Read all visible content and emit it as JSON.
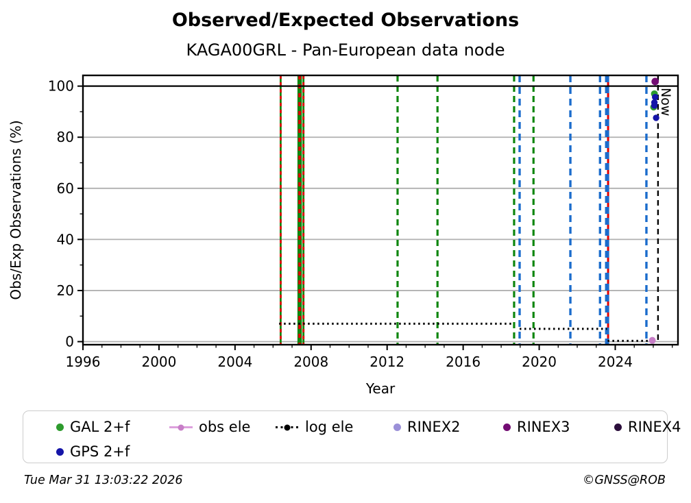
{
  "header": {
    "title": "Observed/Expected Observations",
    "subtitle": "KAGA00GRL - Pan-European data node"
  },
  "chart_data": {
    "type": "scatter",
    "title": "Observed/Expected Observations",
    "subtitle": "KAGA00GRL - Pan-European data node",
    "xlabel": "Year",
    "ylabel": "Obs/Exp Observations (%)",
    "xlim": [
      1996,
      2027.3
    ],
    "ylim": [
      -1.2,
      104.2
    ],
    "xticks": [
      1996,
      2000,
      2004,
      2008,
      2012,
      2016,
      2020,
      2024
    ],
    "xminor_step": 1,
    "yticks": [
      0,
      20,
      40,
      60,
      80,
      100
    ],
    "yminors": [
      10,
      30,
      50,
      70,
      90
    ],
    "grid": "horizontal-only",
    "hline": 100,
    "now": {
      "x": 2026.25,
      "label": "Now"
    },
    "event_lines": [
      {
        "x": 2006.4,
        "style": "green+red"
      },
      {
        "x": 2007.4,
        "style": "green+red-thick"
      },
      {
        "x": 2007.6,
        "style": "green+red"
      },
      {
        "x": 2012.55,
        "style": "green-dash"
      },
      {
        "x": 2014.65,
        "style": "green-dash"
      },
      {
        "x": 2018.68,
        "style": "green-dash"
      },
      {
        "x": 2018.97,
        "style": "blue-dash"
      },
      {
        "x": 2019.7,
        "style": "green-dash"
      },
      {
        "x": 2021.64,
        "style": "blue-dash"
      },
      {
        "x": 2023.2,
        "style": "blue-dash"
      },
      {
        "x": 2023.57,
        "style": "blue+red-thick"
      },
      {
        "x": 2025.64,
        "style": "blue-dash"
      }
    ],
    "log_ele": {
      "label": "log ele",
      "segments": [
        {
          "x1": 2006.32,
          "x2": 2018.68,
          "y": 7
        },
        {
          "x1": 2018.97,
          "x2": 2023.57,
          "y": 5
        },
        {
          "x1": 2023.6,
          "x2": 2025.95,
          "y": 0.3
        }
      ]
    },
    "series": [
      {
        "name": "GAL 2+f",
        "color": "#2E9B2E",
        "points": [
          [
            2026.06,
            97.0
          ],
          [
            2026.02,
            91.8
          ]
        ]
      },
      {
        "name": "GPS 2+f",
        "color": "#1515A8",
        "points": [
          [
            2026.1,
            95.7
          ],
          [
            2026.06,
            93.6
          ],
          [
            2026.06,
            92.4
          ],
          [
            2026.15,
            87.6
          ]
        ]
      },
      {
        "name": "RINEX3",
        "color": "#730D73",
        "points": [
          [
            2026.1,
            101.8
          ]
        ]
      },
      {
        "name": "obs ele",
        "color": "#C77EC7",
        "points": [
          [
            2025.95,
            0.5
          ]
        ]
      }
    ],
    "colors": {
      "green_event": "#0E860E",
      "blue_event": "#1B6CCC",
      "red_event": "#E00000",
      "now_line": "#000000",
      "grid": "#B0B0B0",
      "axis": "#000000"
    }
  },
  "legend": {
    "items": [
      {
        "label": "GAL 2+f",
        "marker": "dot",
        "color": "#2E9B2E"
      },
      {
        "label": "obs ele",
        "marker": "line-dot",
        "color": "#DDA0DD",
        "marker_dot_color": "#C77EC7"
      },
      {
        "label": "log ele",
        "marker": "dotted-line-dot",
        "color": "#000000"
      },
      {
        "label": "RINEX2",
        "marker": "dot",
        "color": "#9B90D8"
      },
      {
        "label": "RINEX3",
        "marker": "dot",
        "color": "#730D73"
      },
      {
        "label": "RINEX4",
        "marker": "dot",
        "color": "#2C0F3C"
      },
      {
        "label": "GPS 2+f",
        "marker": "dot",
        "color": "#1515A8"
      }
    ]
  },
  "footer": {
    "timestamp": "Tue Mar 31 13:03:22 2026",
    "copyright": "©GNSS@ROB"
  }
}
